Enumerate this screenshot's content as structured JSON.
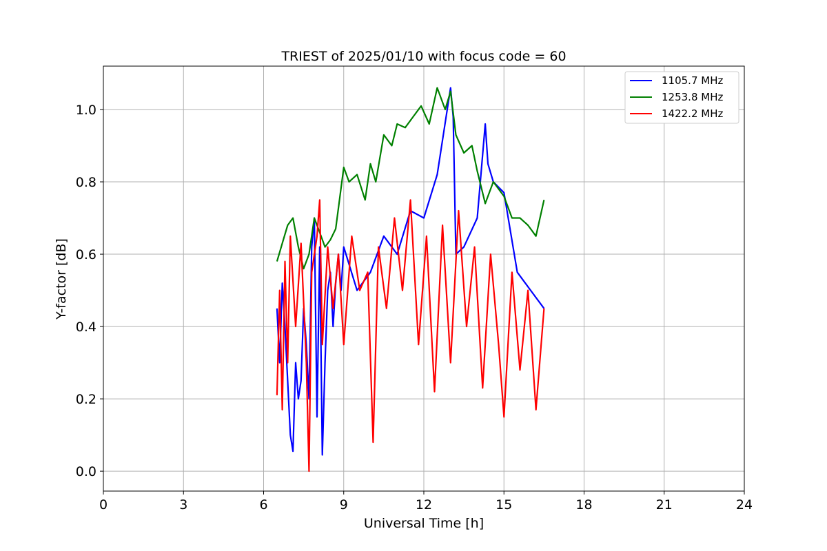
{
  "chart_data": {
    "type": "line",
    "title": "TRIEST of 2025/01/10 with focus code = 60",
    "xlabel": "Universal Time [h]",
    "ylabel": "Y-factor [dB]",
    "xlim": [
      0,
      24
    ],
    "ylim": [
      -0.055,
      1.12
    ],
    "xticks": [
      0,
      3,
      6,
      9,
      12,
      15,
      18,
      21,
      24
    ],
    "yticks": [
      0.0,
      0.2,
      0.4,
      0.6,
      0.8,
      1.0
    ],
    "xtick_labels": [
      "0",
      "3",
      "6",
      "9",
      "12",
      "15",
      "18",
      "21",
      "24"
    ],
    "ytick_labels": [
      "0.0",
      "0.2",
      "0.4",
      "0.6",
      "0.8",
      "1.0"
    ],
    "grid": true,
    "legend_position": "top-right",
    "series": [
      {
        "name": "1105.7 MHz",
        "color": "#0000ff",
        "x": [
          6.5,
          6.6,
          6.7,
          6.8,
          6.9,
          7.0,
          7.1,
          7.2,
          7.3,
          7.4,
          7.5,
          7.6,
          7.7,
          7.8,
          7.9,
          8.0,
          8.1,
          8.2,
          8.3,
          8.4,
          8.5,
          8.6,
          8.7,
          8.8,
          8.9,
          9.0,
          9.5,
          10.0,
          10.5,
          11.0,
          11.5,
          12.0,
          12.5,
          13.0,
          13.1,
          13.2,
          13.5,
          14.0,
          14.3,
          14.4,
          14.6,
          15.0,
          15.5,
          16.0,
          16.5
        ],
        "y": [
          0.45,
          0.3,
          0.52,
          0.4,
          0.25,
          0.1,
          0.055,
          0.3,
          0.2,
          0.25,
          0.45,
          0.35,
          0.2,
          0.62,
          0.7,
          0.15,
          0.62,
          0.045,
          0.3,
          0.5,
          0.55,
          0.4,
          0.52,
          0.6,
          0.5,
          0.62,
          0.5,
          0.55,
          0.65,
          0.6,
          0.72,
          0.7,
          0.82,
          1.06,
          0.98,
          0.6,
          0.62,
          0.7,
          0.96,
          0.85,
          0.8,
          0.77,
          0.55,
          0.5,
          0.45
        ]
      },
      {
        "name": "1253.8 MHz",
        "color": "#008000",
        "x": [
          6.5,
          6.7,
          6.9,
          7.1,
          7.3,
          7.5,
          7.7,
          7.9,
          8.1,
          8.3,
          8.5,
          8.7,
          9.0,
          9.2,
          9.5,
          9.8,
          10.0,
          10.2,
          10.5,
          10.8,
          11.0,
          11.3,
          11.6,
          11.9,
          12.2,
          12.5,
          12.8,
          13.0,
          13.2,
          13.5,
          13.8,
          14.0,
          14.3,
          14.6,
          15.0,
          15.3,
          15.6,
          15.9,
          16.2,
          16.5
        ],
        "y": [
          0.58,
          0.63,
          0.68,
          0.7,
          0.62,
          0.56,
          0.6,
          0.7,
          0.66,
          0.62,
          0.64,
          0.67,
          0.84,
          0.8,
          0.82,
          0.75,
          0.85,
          0.8,
          0.93,
          0.9,
          0.96,
          0.95,
          0.98,
          1.01,
          0.96,
          1.06,
          1.0,
          1.05,
          0.93,
          0.88,
          0.9,
          0.83,
          0.74,
          0.8,
          0.76,
          0.7,
          0.7,
          0.68,
          0.65,
          0.75
        ]
      },
      {
        "name": "1422.2 MHz",
        "color": "#ff0000",
        "x": [
          6.5,
          6.6,
          6.7,
          6.8,
          6.9,
          7.0,
          7.2,
          7.4,
          7.6,
          7.7,
          7.8,
          8.0,
          8.1,
          8.2,
          8.4,
          8.6,
          8.8,
          9.0,
          9.3,
          9.6,
          9.9,
          10.1,
          10.3,
          10.6,
          10.9,
          11.2,
          11.5,
          11.8,
          12.1,
          12.4,
          12.7,
          13.0,
          13.3,
          13.6,
          13.9,
          14.2,
          14.5,
          14.8,
          15.0,
          15.3,
          15.6,
          15.9,
          16.2,
          16.5
        ],
        "y": [
          0.21,
          0.5,
          0.17,
          0.58,
          0.3,
          0.65,
          0.4,
          0.63,
          0.3,
          0.0,
          0.55,
          0.65,
          0.75,
          0.35,
          0.62,
          0.45,
          0.6,
          0.35,
          0.65,
          0.5,
          0.55,
          0.08,
          0.62,
          0.45,
          0.7,
          0.5,
          0.75,
          0.35,
          0.65,
          0.22,
          0.68,
          0.3,
          0.72,
          0.4,
          0.62,
          0.23,
          0.6,
          0.35,
          0.15,
          0.55,
          0.28,
          0.5,
          0.17,
          0.45
        ]
      }
    ]
  }
}
